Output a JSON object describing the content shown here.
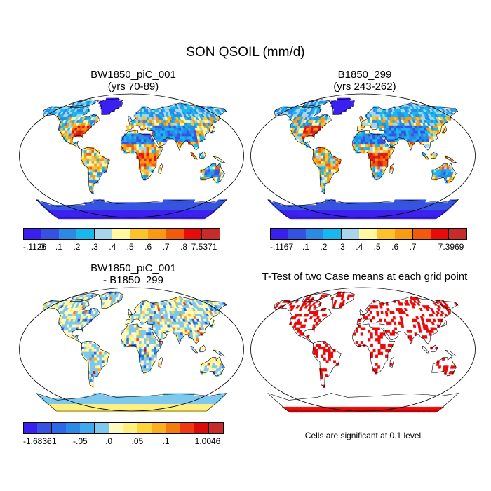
{
  "figure": {
    "title": "SON QSOIL (mm/d)",
    "panels": [
      {
        "id": "p1",
        "title_line1": "BW1850_piC_001",
        "title_line2": "(yrs 70-89)"
      },
      {
        "id": "p2",
        "title_line1": "B1850_299",
        "title_line2": "(yrs 243-262)"
      },
      {
        "id": "p3",
        "title_line1": "BW1850_piC_001",
        "title_line2": "- B1850_299"
      },
      {
        "id": "p4",
        "title_line1": "T-Test of two Case means at each grid point",
        "title_line2": ""
      }
    ],
    "colorbars": [
      {
        "id": "cb1",
        "colors": [
          "#3a1ff0",
          "#3553e0",
          "#2a8ae6",
          "#16b8f0",
          "#a6d5ec",
          "#fff8a0",
          "#fdc32a",
          "#f89b12",
          "#f45a0c",
          "#ea0a0a",
          "#c92a2a"
        ],
        "labels": [
          "-.1126",
          ".0",
          ".1",
          ".2",
          ".3",
          ".4",
          ".5",
          ".6",
          ".7",
          ".8",
          "7.5371"
        ]
      },
      {
        "id": "cb2",
        "colors": [
          "#3a1ff0",
          "#3553e0",
          "#2a8ae6",
          "#16b8f0",
          "#a6d5ec",
          "#fff8a0",
          "#fdc32a",
          "#f89b12",
          "#f45a0c",
          "#ea0a0a",
          "#c92a2a"
        ],
        "labels": [
          "-.1167",
          "",
          ".1",
          ".2",
          ".3",
          ".4",
          ".5",
          ".6",
          ".7",
          "",
          "7.3969"
        ]
      },
      {
        "id": "cb3",
        "colors": [
          "#3a1ff0",
          "#3553e0",
          "#2a6ae8",
          "#2a8ae6",
          "#40a8ee",
          "#7cc8ee",
          "#fffbc0",
          "#fff080",
          "#fdd53a",
          "#fbae1e",
          "#f57a10",
          "#ee3a0e",
          "#dc0a0a",
          "#c92a2a"
        ],
        "labels": [
          "-1.6836",
          "",
          "-.1",
          "",
          "-.05",
          "",
          ".0",
          "",
          ".05",
          "",
          ".1",
          "",
          "",
          "1.0046"
        ]
      }
    ],
    "significance_note": "Cells are significant at 0.1 level",
    "colors": {
      "ocean": "#ffffff",
      "land_wet_high": "#ea0a0a",
      "land_low": "#2a8ae6",
      "antarctica": "#3a1ff0",
      "diff_neutral": "#fff8a0",
      "significant": "#ea0a0a"
    }
  }
}
